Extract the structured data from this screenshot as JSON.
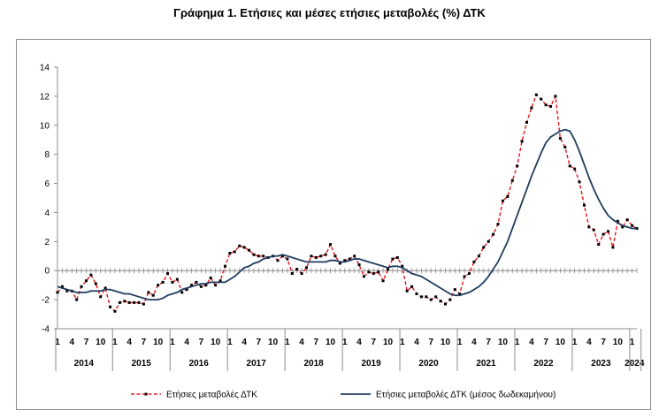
{
  "chart_data": {
    "type": "line",
    "title": "Γράφημα 1. Ετήσιες και μέσες ετήσιες μεταβολές (%) ΔΤΚ",
    "ylim": [
      -4,
      14
    ],
    "yticks": [
      "-4",
      "-2",
      "0",
      "2",
      "4",
      "6",
      "8",
      "10",
      "12",
      "14"
    ],
    "month_labels": [
      "1",
      "4",
      "7",
      "10"
    ],
    "years": [
      "2014",
      "2015",
      "2016",
      "2017",
      "2018",
      "2019",
      "2020",
      "2021",
      "2022",
      "2023",
      "2024"
    ],
    "x_start": "2014-01",
    "grid": false,
    "legend_position": "bottom",
    "series": [
      {
        "name": "Ετήσιες μεταβολές ΔΤΚ",
        "color": "#e8151b",
        "style": "dashed-with-markers",
        "values": [
          -1.5,
          -1.1,
          -1.4,
          -1.4,
          -2.0,
          -1.1,
          -0.7,
          -0.3,
          -0.9,
          -1.8,
          -1.2,
          -2.5,
          -2.8,
          -2.2,
          -2.1,
          -2.2,
          -2.2,
          -2.2,
          -2.3,
          -1.5,
          -1.7,
          -1.0,
          -0.8,
          -0.2,
          -0.8,
          -0.6,
          -1.5,
          -1.3,
          -1.0,
          -0.8,
          -1.1,
          -1.0,
          -0.5,
          -1.0,
          -0.7,
          0.3,
          1.2,
          1.3,
          1.7,
          1.6,
          1.4,
          1.1,
          1.0,
          1.0,
          0.9,
          1.0,
          0.7,
          1.0,
          0.8,
          -0.2,
          0.1,
          -0.2,
          0.2,
          1.0,
          0.9,
          1.0,
          1.1,
          1.8,
          1.0,
          0.5,
          0.7,
          0.8,
          1.0,
          0.4,
          -0.4,
          -0.1,
          -0.2,
          -0.1,
          -0.7,
          0.1,
          0.8,
          0.9,
          0.3,
          -1.4,
          -1.1,
          -1.6,
          -1.8,
          -1.8,
          -2.0,
          -1.8,
          -2.1,
          -2.3,
          -2.0,
          -1.3,
          -1.6,
          -0.4,
          -0.2,
          0.6,
          1.0,
          1.6,
          2.0,
          2.5,
          3.2,
          4.8,
          5.1,
          6.2,
          7.2,
          8.9,
          10.2,
          11.2,
          12.1,
          11.8,
          11.4,
          11.3,
          12.0,
          9.1,
          8.5,
          7.2,
          7.0,
          6.1,
          4.5,
          3.0,
          2.8,
          1.8,
          2.5,
          2.7,
          1.6,
          3.4,
          3.0,
          3.5,
          3.1,
          2.9
        ]
      },
      {
        "name": "Ετήσιες μεταβολές ΔΤΚ (μέσος δωδεκαμήνου)",
        "color": "#1f3c5e",
        "style": "solid",
        "values": [
          -1.1,
          -1.2,
          -1.3,
          -1.4,
          -1.5,
          -1.5,
          -1.5,
          -1.4,
          -1.4,
          -1.4,
          -1.3,
          -1.3,
          -1.4,
          -1.5,
          -1.6,
          -1.6,
          -1.7,
          -1.8,
          -1.9,
          -2.0,
          -2.0,
          -2.0,
          -1.9,
          -1.7,
          -1.6,
          -1.5,
          -1.3,
          -1.2,
          -1.1,
          -1.0,
          -0.9,
          -0.9,
          -0.8,
          -0.8,
          -0.8,
          -0.8,
          -0.6,
          -0.4,
          -0.1,
          0.2,
          0.3,
          0.5,
          0.6,
          0.8,
          0.9,
          1.0,
          1.0,
          1.1,
          1.0,
          0.9,
          0.8,
          0.7,
          0.6,
          0.6,
          0.6,
          0.6,
          0.6,
          0.7,
          0.7,
          0.6,
          0.6,
          0.7,
          0.8,
          0.8,
          0.7,
          0.6,
          0.5,
          0.4,
          0.3,
          0.2,
          0.3,
          0.3,
          0.2,
          0.0,
          -0.2,
          -0.3,
          -0.4,
          -0.6,
          -0.8,
          -1.0,
          -1.2,
          -1.4,
          -1.6,
          -1.7,
          -1.7,
          -1.6,
          -1.5,
          -1.3,
          -1.1,
          -0.8,
          -0.4,
          0.1,
          0.6,
          1.3,
          2.0,
          2.9,
          3.8,
          4.7,
          5.6,
          6.5,
          7.3,
          8.1,
          8.8,
          9.2,
          9.4,
          9.6,
          9.7,
          9.6,
          9.0,
          8.2,
          7.3,
          6.4,
          5.6,
          4.9,
          4.3,
          3.8,
          3.5,
          3.3,
          3.1,
          3.0,
          2.9,
          2.9
        ]
      }
    ]
  }
}
